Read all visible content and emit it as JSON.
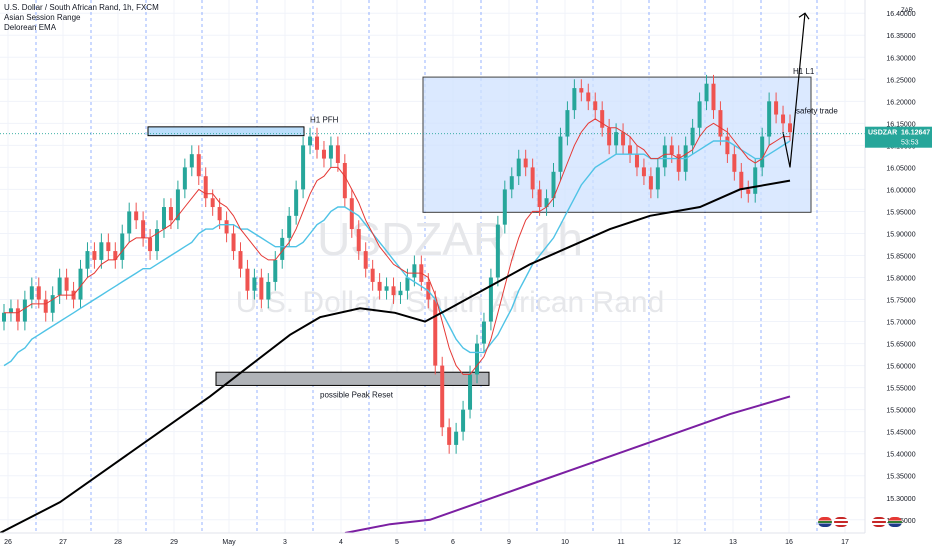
{
  "header": {
    "symbol_title": "U.S. Dollar / South African Rand, 1h, FXCM",
    "indicator_1": "Asian Session Range",
    "indicator_2": "Delorean EMA"
  },
  "watermark": {
    "symbol": "USDZAR, 1h",
    "name": "U.S. Dollar / South African Rand"
  },
  "price_tag": {
    "symbol": "USDZAR",
    "price": "16.12647",
    "countdown": "53:53"
  },
  "axis_currency": "ZAR",
  "colors": {
    "candle_up": "#26a69a",
    "candle_down": "#ef5350",
    "ema_fast": "#e53935",
    "ema_mid": "#4fc3e6",
    "ema_slow": "#000000",
    "ema_long": "#7b1fa2",
    "range_box": "#cfe2ff",
    "session_line": "#2962ff"
  },
  "annotations": {
    "h1_pfh": "H1 PFH",
    "peak_reset": "possible Peak Reset",
    "h1_l1": "H1 L1",
    "safety_trade": "safety trade"
  },
  "chart_data": {
    "type": "candlestick",
    "title": "U.S. Dollar / South African Rand, 1h, FXCM",
    "ylim": [
      15.22,
      16.43
    ],
    "yticks": [
      "16.40000",
      "16.35000",
      "16.30000",
      "16.25000",
      "16.20000",
      "16.15000",
      "16.10000",
      "16.05000",
      "16.00000",
      "15.95000",
      "15.90000",
      "15.85000",
      "15.80000",
      "15.75000",
      "15.70000",
      "15.65000",
      "15.60000",
      "15.55000",
      "15.50000",
      "15.45000",
      "15.40000",
      "15.35000",
      "15.30000",
      "15.25000"
    ],
    "xticks": [
      "26",
      "27",
      "28",
      "29",
      "May",
      "3",
      "4",
      "5",
      "6",
      "9",
      "10",
      "11",
      "12",
      "13",
      "16",
      "17"
    ],
    "closes": [
      15.72,
      15.73,
      15.7,
      15.75,
      15.78,
      15.75,
      15.72,
      15.76,
      15.8,
      15.77,
      15.75,
      15.82,
      15.86,
      15.84,
      15.88,
      15.86,
      15.84,
      15.9,
      15.95,
      15.93,
      15.89,
      15.86,
      15.91,
      15.96,
      15.93,
      16.0,
      16.05,
      16.08,
      16.03,
      15.98,
      15.96,
      15.93,
      15.9,
      15.86,
      15.82,
      15.77,
      15.8,
      15.75,
      15.79,
      15.84,
      15.89,
      15.94,
      16.0,
      16.1,
      16.12,
      16.09,
      16.07,
      16.1,
      16.06,
      15.98,
      15.91,
      15.86,
      15.82,
      15.79,
      15.77,
      15.78,
      15.76,
      15.77,
      15.8,
      15.83,
      15.79,
      15.75,
      15.6,
      15.46,
      15.42,
      15.45,
      15.5,
      15.58,
      15.65,
      15.7,
      15.8,
      15.92,
      16.0,
      16.03,
      16.07,
      16.05,
      16.0,
      15.96,
      15.98,
      16.04,
      16.12,
      16.18,
      16.23,
      16.22,
      16.2,
      16.18,
      16.14,
      16.1,
      16.13,
      16.1,
      16.08,
      16.05,
      16.03,
      16.0,
      16.05,
      16.1,
      16.08,
      16.04,
      16.1,
      16.14,
      16.2,
      16.24,
      16.18,
      16.12,
      16.08,
      16.04,
      16.0,
      15.99,
      16.05,
      16.12,
      16.2,
      16.17,
      16.15,
      16.13
    ],
    "ema_fast": [
      15.72,
      15.72,
      15.72,
      15.73,
      15.74,
      15.74,
      15.74,
      15.75,
      15.76,
      15.76,
      15.76,
      15.78,
      15.8,
      15.81,
      15.83,
      15.84,
      15.84,
      15.86,
      15.88,
      15.89,
      15.89,
      15.89,
      15.9,
      15.91,
      15.92,
      15.94,
      15.96,
      15.98,
      16.0,
      15.99,
      15.99,
      15.97,
      15.96,
      15.94,
      15.91,
      15.89,
      15.87,
      15.85,
      15.84,
      15.84,
      15.86,
      15.88,
      15.91,
      15.95,
      15.99,
      16.02,
      16.03,
      16.05,
      16.05,
      16.03,
      16.0,
      15.97,
      15.93,
      15.9,
      15.87,
      15.85,
      15.83,
      15.82,
      15.81,
      15.81,
      15.81,
      15.8,
      15.76,
      15.7,
      15.64,
      15.6,
      15.58,
      15.58,
      15.6,
      15.62,
      15.66,
      15.72,
      15.78,
      15.84,
      15.89,
      15.93,
      15.95,
      15.95,
      15.96,
      15.98,
      16.02,
      16.06,
      16.1,
      16.13,
      16.15,
      16.16,
      16.15,
      16.14,
      16.14,
      16.13,
      16.12,
      16.1,
      16.09,
      16.07,
      16.07,
      16.08,
      16.08,
      16.07,
      16.08,
      16.09,
      16.12,
      16.14,
      16.15,
      16.14,
      16.13,
      16.11,
      16.09,
      16.07,
      16.06,
      16.07,
      16.1,
      16.11,
      16.12,
      16.12
    ],
    "ema_mid": [
      15.6,
      15.61,
      15.63,
      15.64,
      15.66,
      15.67,
      15.68,
      15.69,
      15.7,
      15.71,
      15.72,
      15.73,
      15.74,
      15.75,
      15.76,
      15.77,
      15.78,
      15.79,
      15.8,
      15.81,
      15.82,
      15.82,
      15.83,
      15.84,
      15.85,
      15.86,
      15.87,
      15.88,
      15.9,
      15.91,
      15.91,
      15.92,
      15.92,
      15.92,
      15.91,
      15.91,
      15.9,
      15.89,
      15.88,
      15.87,
      15.87,
      15.87,
      15.87,
      15.88,
      15.9,
      15.92,
      15.93,
      15.95,
      15.96,
      15.96,
      15.95,
      15.94,
      15.92,
      15.9,
      15.88,
      15.86,
      15.84,
      15.82,
      15.8,
      15.79,
      15.78,
      15.77,
      15.75,
      15.72,
      15.69,
      15.66,
      15.64,
      15.63,
      15.63,
      15.63,
      15.65,
      15.67,
      15.7,
      15.73,
      15.77,
      15.8,
      15.83,
      15.85,
      15.87,
      15.89,
      15.92,
      15.95,
      15.98,
      16.01,
      16.03,
      16.05,
      16.06,
      16.07,
      16.08,
      16.08,
      16.08,
      16.08,
      16.08,
      16.07,
      16.07,
      16.07,
      16.07,
      16.07,
      16.07,
      16.08,
      16.09,
      16.1,
      16.11,
      16.11,
      16.11,
      16.1,
      16.09,
      16.08,
      16.07,
      16.07,
      16.08,
      16.09,
      16.1,
      16.11
    ],
    "ema_slow": [
      [
        0,
        15.22
      ],
      [
        60,
        15.29
      ],
      [
        110,
        15.37
      ],
      [
        160,
        15.45
      ],
      [
        210,
        15.53
      ],
      [
        250,
        15.6
      ],
      [
        290,
        15.67
      ],
      [
        320,
        15.71
      ],
      [
        360,
        15.73
      ],
      [
        395,
        15.72
      ],
      [
        425,
        15.7
      ],
      [
        450,
        15.73
      ],
      [
        490,
        15.78
      ],
      [
        530,
        15.83
      ],
      [
        570,
        15.87
      ],
      [
        610,
        15.91
      ],
      [
        650,
        15.94
      ],
      [
        700,
        15.96
      ],
      [
        740,
        16.0
      ],
      [
        790,
        16.02
      ]
    ],
    "ema_long": [
      [
        345,
        15.22
      ],
      [
        390,
        15.24
      ],
      [
        430,
        15.25
      ],
      [
        480,
        15.29
      ],
      [
        530,
        15.33
      ],
      [
        580,
        15.37
      ],
      [
        630,
        15.41
      ],
      [
        680,
        15.45
      ],
      [
        730,
        15.49
      ],
      [
        760,
        15.51
      ],
      [
        790,
        15.53
      ]
    ],
    "current_price": 16.12647
  }
}
